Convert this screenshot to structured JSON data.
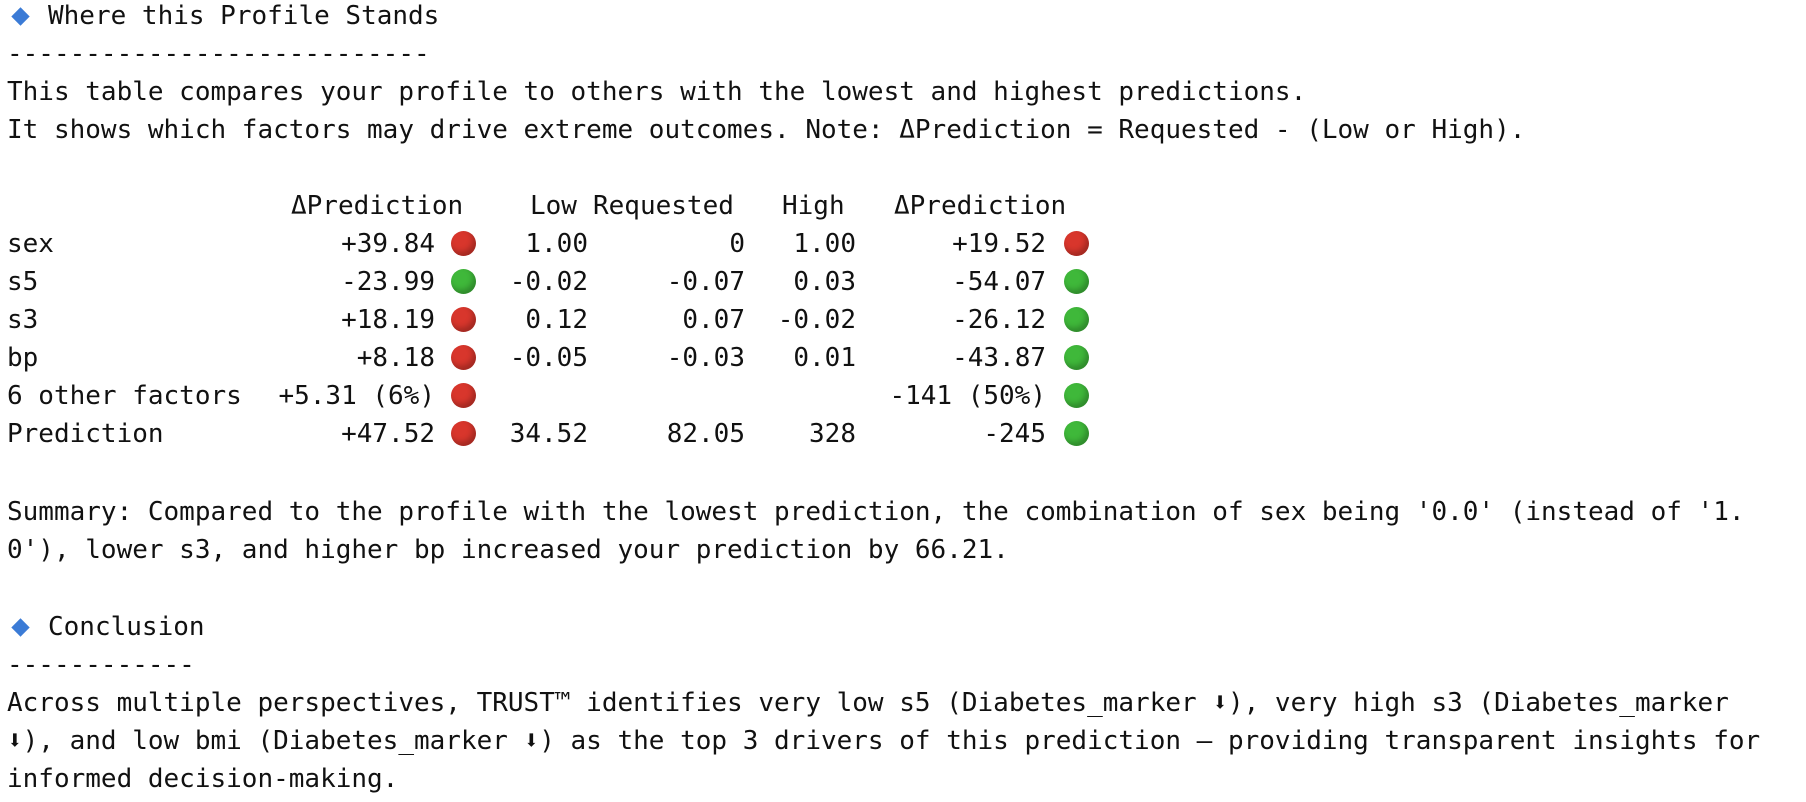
{
  "section1": {
    "title": "Where this Profile Stands",
    "divider": "---------------------------",
    "intro": [
      "This table compares your profile to others with the lowest and highest predictions.",
      "It shows which factors may drive extreme outcomes. Note: ΔPrediction = Requested - (Low or High)."
    ]
  },
  "table": {
    "headers": [
      "ΔPrediction",
      "Low",
      "Requested",
      "High",
      "ΔPrediction"
    ],
    "dot_colors": {
      "red": "#d8362c",
      "green": "#3fb83a"
    },
    "rows": [
      {
        "label": "sex",
        "delta_low": "+39.84",
        "low_dot": "red",
        "low": "1.00",
        "requested": "0",
        "high": "1.00",
        "delta_high": "+19.52",
        "high_dot": "red"
      },
      {
        "label": "s5",
        "delta_low": "-23.99",
        "low_dot": "green",
        "low": "-0.02",
        "requested": "-0.07",
        "high": "0.03",
        "delta_high": "-54.07",
        "high_dot": "green"
      },
      {
        "label": "s3",
        "delta_low": "+18.19",
        "low_dot": "red",
        "low": "0.12",
        "requested": "0.07",
        "high": "-0.02",
        "delta_high": "-26.12",
        "high_dot": "green"
      },
      {
        "label": "bp",
        "delta_low": "+8.18",
        "low_dot": "red",
        "low": "-0.05",
        "requested": "-0.03",
        "high": "0.01",
        "delta_high": "-43.87",
        "high_dot": "green"
      },
      {
        "label": "6 other factors",
        "delta_low": "+5.31 (6%)",
        "low_dot": "red",
        "delta_high": "-141 (50%)",
        "high_dot": "green"
      },
      {
        "label": "Prediction",
        "delta_low": "+47.52",
        "low_dot": "red",
        "low": "34.52",
        "requested": "82.05",
        "high": "328",
        "delta_high": "-245",
        "high_dot": "green"
      }
    ]
  },
  "summary": [
    "Summary: Compared to the profile with the lowest prediction, the combination of sex being '0.0' (instead of '1.",
    "0'), lower s3, and higher bp increased your prediction by 66.21."
  ],
  "section2": {
    "title": "Conclusion",
    "divider": "------------",
    "lines": [
      "Across multiple perspectives, TRUST™ identifies very low s5 (Diabetes_marker ⬇), very high s3 (Diabetes_marker",
      "⬇), and low bmi (Diabetes_marker ⬇) as the top 3 drivers of this prediction – providing transparent insights for",
      "informed decision-making."
    ]
  }
}
